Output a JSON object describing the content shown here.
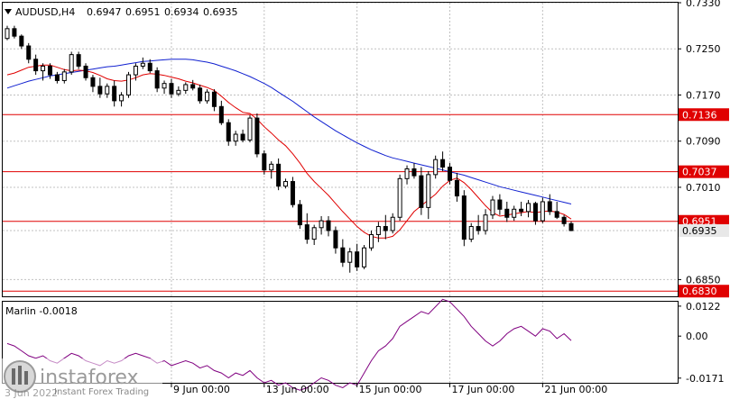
{
  "header": {
    "symbol": "AUDUSD,H4",
    "open": "0.6947",
    "high": "0.6951",
    "low": "0.6934",
    "close": "0.6935"
  },
  "indicator": {
    "label": "Marlin -0.0018",
    "ticks": [
      "0.0122",
      "0.00",
      "-0.0171"
    ]
  },
  "watermark": {
    "brand": "instaforex",
    "tagline": "Instant Forex Trading",
    "overlay_text": "3 Jun 2022"
  },
  "levels": [
    {
      "label": "0.7136",
      "value": 0.7136
    },
    {
      "label": "0.7037",
      "value": 0.7037
    },
    {
      "label": "0.6951",
      "value": 0.6951
    },
    {
      "label": "0.6830",
      "value": 0.683
    }
  ],
  "current_price": {
    "label": "0.6935",
    "value": 0.6935
  },
  "colors": {
    "bg": "#ffffff",
    "grid": "#c0c0c0",
    "level": "#e00000",
    "ma_fast": "#e00000",
    "ma_slow": "#1020d0",
    "osc": "#800080",
    "candle": "#000000"
  },
  "chart_data": {
    "type": "candlestick",
    "title": "AUDUSD,H4",
    "y_ticks": [
      "0.7330",
      "0.7250",
      "0.7170",
      "0.7090",
      "0.7010",
      "0.6935",
      "0.6850"
    ],
    "x_ticks": [
      "9 Jun 00:00",
      "13 Jun 00:00",
      "15 Jun 00:00",
      "17 Jun 00:00",
      "21 Jun 00:00"
    ],
    "ylim": [
      0.6821,
      0.733
    ],
    "grid": true,
    "candles": [
      [
        0.7268,
        0.729,
        0.7265,
        0.7285
      ],
      [
        0.7285,
        0.729,
        0.7268,
        0.7272
      ],
      [
        0.7272,
        0.7275,
        0.725,
        0.7255
      ],
      [
        0.7255,
        0.726,
        0.7225,
        0.7232
      ],
      [
        0.7232,
        0.724,
        0.7205,
        0.7212
      ],
      [
        0.7212,
        0.7225,
        0.7195,
        0.722
      ],
      [
        0.722,
        0.7225,
        0.7198,
        0.7205
      ],
      [
        0.7205,
        0.721,
        0.719,
        0.7195
      ],
      [
        0.7195,
        0.7215,
        0.719,
        0.721
      ],
      [
        0.721,
        0.7245,
        0.7205,
        0.724
      ],
      [
        0.724,
        0.7245,
        0.7215,
        0.722
      ],
      [
        0.722,
        0.7225,
        0.7195,
        0.72
      ],
      [
        0.72,
        0.7205,
        0.7175,
        0.7185
      ],
      [
        0.7185,
        0.72,
        0.7165,
        0.7172
      ],
      [
        0.7172,
        0.719,
        0.7165,
        0.7185
      ],
      [
        0.7185,
        0.7195,
        0.715,
        0.716
      ],
      [
        0.716,
        0.7175,
        0.715,
        0.717
      ],
      [
        0.717,
        0.721,
        0.7165,
        0.7205
      ],
      [
        0.7205,
        0.7225,
        0.7195,
        0.722
      ],
      [
        0.722,
        0.7235,
        0.7215,
        0.7225
      ],
      [
        0.7225,
        0.7232,
        0.7208,
        0.7212
      ],
      [
        0.7212,
        0.7218,
        0.7175,
        0.7182
      ],
      [
        0.7182,
        0.7195,
        0.7172,
        0.719
      ],
      [
        0.719,
        0.7198,
        0.7165,
        0.7172
      ],
      [
        0.7172,
        0.7185,
        0.7168,
        0.7178
      ],
      [
        0.7178,
        0.7192,
        0.7172,
        0.7188
      ],
      [
        0.7188,
        0.7196,
        0.7178,
        0.7182
      ],
      [
        0.7182,
        0.7188,
        0.7155,
        0.716
      ],
      [
        0.716,
        0.718,
        0.7155,
        0.7175
      ],
      [
        0.7175,
        0.718,
        0.7142,
        0.715
      ],
      [
        0.715,
        0.716,
        0.7118,
        0.7122
      ],
      [
        0.7122,
        0.7128,
        0.7082,
        0.709
      ],
      [
        0.709,
        0.7108,
        0.7082,
        0.7102
      ],
      [
        0.7102,
        0.711,
        0.7088,
        0.7092
      ],
      [
        0.7092,
        0.7135,
        0.7088,
        0.713
      ],
      [
        0.713,
        0.7138,
        0.7062,
        0.7068
      ],
      [
        0.7068,
        0.7074,
        0.7032,
        0.704
      ],
      [
        0.704,
        0.7055,
        0.7025,
        0.705
      ],
      [
        0.705,
        0.706,
        0.7005,
        0.7012
      ],
      [
        0.7012,
        0.7025,
        0.7008,
        0.702
      ],
      [
        0.702,
        0.7028,
        0.6975,
        0.698
      ],
      [
        0.698,
        0.6988,
        0.6938,
        0.6945
      ],
      [
        0.6945,
        0.6965,
        0.6912,
        0.692
      ],
      [
        0.692,
        0.6945,
        0.691,
        0.694
      ],
      [
        0.694,
        0.696,
        0.6928,
        0.6952
      ],
      [
        0.6952,
        0.696,
        0.6925,
        0.6935
      ],
      [
        0.6935,
        0.6942,
        0.6895,
        0.6905
      ],
      [
        0.6905,
        0.692,
        0.6872,
        0.688
      ],
      [
        0.688,
        0.6905,
        0.6862,
        0.6898
      ],
      [
        0.6898,
        0.6912,
        0.6865,
        0.6872
      ],
      [
        0.6872,
        0.691,
        0.6868,
        0.6905
      ],
      [
        0.6905,
        0.6935,
        0.69,
        0.6928
      ],
      [
        0.6928,
        0.695,
        0.6915,
        0.6942
      ],
      [
        0.6942,
        0.6962,
        0.692,
        0.6935
      ],
      [
        0.6935,
        0.6965,
        0.693,
        0.6958
      ],
      [
        0.6958,
        0.7032,
        0.6952,
        0.7025
      ],
      [
        0.7025,
        0.7048,
        0.7015,
        0.7042
      ],
      [
        0.7042,
        0.7052,
        0.7025,
        0.703
      ],
      [
        0.703,
        0.7045,
        0.6962,
        0.6975
      ],
      [
        0.6975,
        0.7038,
        0.6955,
        0.7032
      ],
      [
        0.7032,
        0.7065,
        0.7025,
        0.7058
      ],
      [
        0.7058,
        0.7072,
        0.7038,
        0.7045
      ],
      [
        0.7045,
        0.7052,
        0.7015,
        0.7022
      ],
      [
        0.7022,
        0.7035,
        0.6985,
        0.6995
      ],
      [
        0.6995,
        0.7005,
        0.6908,
        0.692
      ],
      [
        0.692,
        0.6948,
        0.6915,
        0.6942
      ],
      [
        0.6942,
        0.6962,
        0.6928,
        0.6935
      ],
      [
        0.6935,
        0.6972,
        0.6928,
        0.6962
      ],
      [
        0.6962,
        0.6995,
        0.6955,
        0.6988
      ],
      [
        0.6988,
        0.6998,
        0.6962,
        0.6972
      ],
      [
        0.6972,
        0.6985,
        0.695,
        0.6958
      ],
      [
        0.6958,
        0.6978,
        0.6952,
        0.6972
      ],
      [
        0.6972,
        0.6985,
        0.696,
        0.6968
      ],
      [
        0.6968,
        0.6988,
        0.6958,
        0.6982
      ],
      [
        0.6982,
        0.6985,
        0.6945,
        0.6952
      ],
      [
        0.6952,
        0.6992,
        0.6948,
        0.6985
      ],
      [
        0.6985,
        0.6998,
        0.6962,
        0.6968
      ],
      [
        0.6968,
        0.6985,
        0.6955,
        0.6958
      ],
      [
        0.6958,
        0.6962,
        0.6942,
        0.6947
      ],
      [
        0.6947,
        0.6951,
        0.6934,
        0.6935
      ]
    ],
    "oscillator": [
      -0.003,
      -0.004,
      -0.006,
      -0.008,
      -0.009,
      -0.008,
      -0.01,
      -0.011,
      -0.009,
      -0.007,
      -0.008,
      -0.01,
      -0.011,
      -0.012,
      -0.01,
      -0.011,
      -0.01,
      -0.008,
      -0.007,
      -0.008,
      -0.009,
      -0.011,
      -0.01,
      -0.012,
      -0.011,
      -0.01,
      -0.011,
      -0.013,
      -0.012,
      -0.014,
      -0.015,
      -0.017,
      -0.015,
      -0.016,
      -0.014,
      -0.017,
      -0.019,
      -0.018,
      -0.02,
      -0.019,
      -0.021,
      -0.022,
      -0.021,
      -0.019,
      -0.017,
      -0.018,
      -0.02,
      -0.021,
      -0.019,
      -0.02,
      -0.015,
      -0.01,
      -0.006,
      -0.004,
      -0.001,
      0.004,
      0.006,
      0.008,
      0.01,
      0.009,
      0.012,
      0.015,
      0.014,
      0.011,
      0.008,
      0.004,
      0.001,
      -0.002,
      -0.004,
      -0.002,
      0.001,
      0.003,
      0.004,
      0.002,
      0.0,
      0.003,
      0.002,
      -0.001,
      0.001,
      -0.0018
    ],
    "ma_fast": [
      0.7205,
      0.7208,
      0.7213,
      0.7218,
      0.722,
      0.7222,
      0.7222,
      0.7218,
      0.7214,
      0.7212,
      0.7213,
      0.7212,
      0.7209,
      0.7204,
      0.7198,
      0.7195,
      0.7194,
      0.7196,
      0.72,
      0.7205,
      0.7207,
      0.7206,
      0.7204,
      0.7201,
      0.7198,
      0.7194,
      0.7191,
      0.7187,
      0.7183,
      0.7178,
      0.7168,
      0.7157,
      0.7148,
      0.714,
      0.7138,
      0.7128,
      0.7115,
      0.7104,
      0.7092,
      0.7082,
      0.7068,
      0.7052,
      0.7034,
      0.702,
      0.7008,
      0.6996,
      0.6982,
      0.6968,
      0.6955,
      0.6942,
      0.6932,
      0.6925,
      0.6922,
      0.6922,
      0.6925,
      0.6936,
      0.6952,
      0.6968,
      0.6978,
      0.6988,
      0.6998,
      0.7012,
      0.7022,
      0.7026,
      0.7018,
      0.7006,
      0.6992,
      0.6978,
      0.6966,
      0.696,
      0.6962,
      0.6964,
      0.6966,
      0.6968,
      0.6966,
      0.6968,
      0.6969,
      0.6967,
      0.6963,
      0.6955
    ],
    "ma_slow": [
      0.7182,
      0.7186,
      0.719,
      0.7194,
      0.7197,
      0.72,
      0.7203,
      0.7205,
      0.7207,
      0.7209,
      0.7211,
      0.7213,
      0.7215,
      0.7217,
      0.7219,
      0.722,
      0.7222,
      0.7224,
      0.7226,
      0.7228,
      0.7229,
      0.723,
      0.7231,
      0.7232,
      0.7232,
      0.7232,
      0.7231,
      0.7229,
      0.7227,
      0.7224,
      0.722,
      0.7216,
      0.7212,
      0.7207,
      0.7202,
      0.7196,
      0.719,
      0.7183,
      0.7175,
      0.7167,
      0.7159,
      0.715,
      0.7141,
      0.7132,
      0.7124,
      0.7116,
      0.7108,
      0.7101,
      0.7094,
      0.7087,
      0.7081,
      0.7075,
      0.707,
      0.7065,
      0.7061,
      0.7058,
      0.7055,
      0.7052,
      0.7049,
      0.7046,
      0.7043,
      0.704,
      0.7037,
      0.7034,
      0.7031,
      0.7027,
      0.7023,
      0.7019,
      0.7015,
      0.7011,
      0.7008,
      0.7005,
      0.7002,
      0.6999,
      0.6996,
      0.6993,
      0.699,
      0.6987,
      0.6984,
      0.6981
    ]
  }
}
